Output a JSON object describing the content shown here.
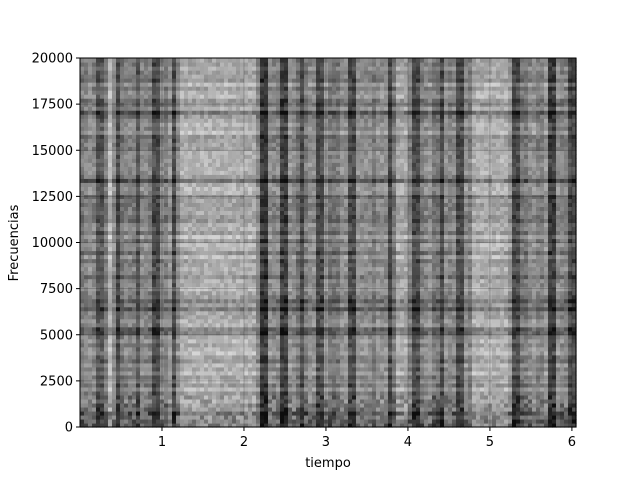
{
  "chart_data": {
    "type": "heatmap",
    "subtype": "spectrogram",
    "colormap": "grayscale",
    "title": "",
    "xlabel": "tiempo",
    "ylabel": "Frecuencias",
    "xlim": [
      0.0,
      6.05
    ],
    "ylim": [
      0,
      20000
    ],
    "xticks": [
      1,
      2,
      3,
      4,
      5,
      6
    ],
    "xtick_labels": [
      "1",
      "2",
      "3",
      "4",
      "5",
      "6"
    ],
    "yticks": [
      0,
      2500,
      5000,
      7500,
      10000,
      12500,
      15000,
      17500,
      20000
    ],
    "ytick_labels": [
      "0",
      "2500",
      "5000",
      "7500",
      "10000",
      "12500",
      "15000",
      "17500",
      "20000"
    ],
    "grid": true,
    "legend": "none",
    "dark_time_bands": [
      {
        "start": 0.2,
        "end": 0.28,
        "level": 0.35
      },
      {
        "start": 0.42,
        "end": 0.5,
        "level": 0.3
      },
      {
        "start": 0.68,
        "end": 0.74,
        "level": 0.35
      },
      {
        "start": 0.88,
        "end": 0.96,
        "level": 0.3
      },
      {
        "start": 1.1,
        "end": 1.16,
        "level": 0.3
      },
      {
        "start": 2.18,
        "end": 2.3,
        "level": 0.22
      },
      {
        "start": 2.45,
        "end": 2.55,
        "level": 0.25
      },
      {
        "start": 2.66,
        "end": 2.72,
        "level": 0.3
      },
      {
        "start": 2.9,
        "end": 2.97,
        "level": 0.3
      },
      {
        "start": 3.28,
        "end": 3.36,
        "level": 0.3
      },
      {
        "start": 3.75,
        "end": 3.82,
        "level": 0.28
      },
      {
        "start": 4.05,
        "end": 4.13,
        "level": 0.3
      },
      {
        "start": 4.38,
        "end": 4.46,
        "level": 0.3
      },
      {
        "start": 4.6,
        "end": 4.7,
        "level": 0.3
      },
      {
        "start": 5.28,
        "end": 5.35,
        "level": 0.3
      },
      {
        "start": 5.72,
        "end": 5.8,
        "level": 0.25
      },
      {
        "start": 5.95,
        "end": 6.05,
        "level": 0.3
      }
    ],
    "bright_time_bands": [
      {
        "start": 0.32,
        "end": 0.4,
        "level": 0.72
      },
      {
        "start": 1.2,
        "end": 2.15,
        "level": 0.68
      },
      {
        "start": 3.85,
        "end": 3.98,
        "level": 0.66
      },
      {
        "start": 4.8,
        "end": 5.22,
        "level": 0.68
      }
    ]
  }
}
